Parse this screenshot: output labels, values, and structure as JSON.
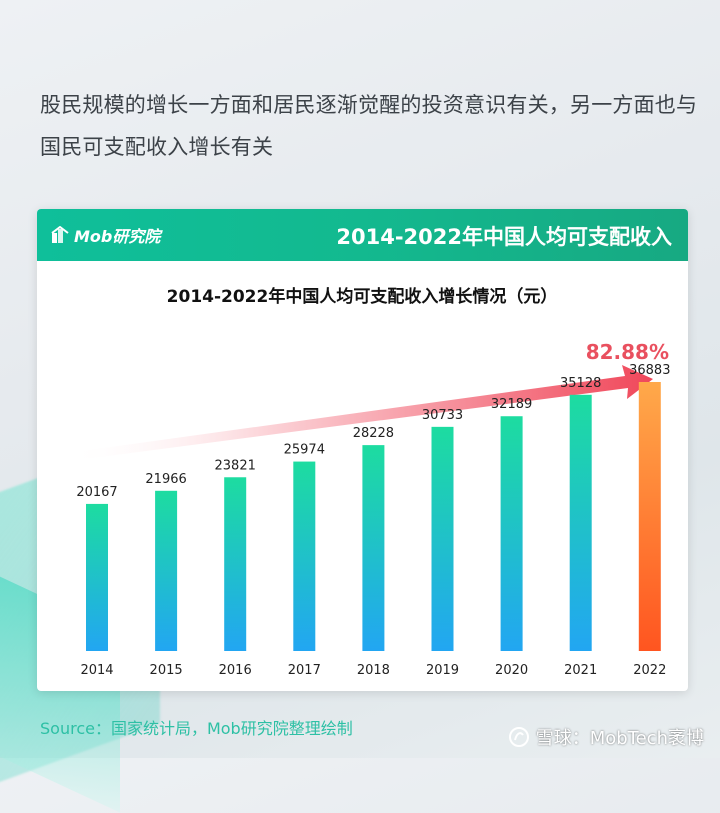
{
  "headline": "股民规模的增长一方面和居民逐渐觉醒的投资意识有关，另一方面也与国民可支配收入增长有关",
  "header": {
    "logo_text": "Mob研究院",
    "title": "2014-2022年中国人均可支配收入"
  },
  "chart_data": {
    "type": "bar",
    "title": "2014-2022年中国人均可支配收入增长情况（元）",
    "categories": [
      "2014",
      "2015",
      "2016",
      "2017",
      "2018",
      "2019",
      "2020",
      "2021",
      "2022"
    ],
    "values": [
      20167,
      21966,
      23821,
      25974,
      28228,
      30733,
      32189,
      35128,
      36883
    ],
    "value_labels": [
      "20167",
      "21966",
      "23821",
      "25974",
      "28228",
      "30733",
      "32189",
      "35128",
      "36883"
    ],
    "growth_annotation": "82.88%",
    "highlight_category": "2022",
    "colors": {
      "bar_top": "#1ddca0",
      "bar_bottom": "#22a6f2",
      "highlight_top": "#ffa94a",
      "highlight_bottom": "#ff5520",
      "arrow": "#f0475a",
      "annotation": "#e9505f"
    },
    "xlabel": "",
    "ylabel": "",
    "grid": false
  },
  "source": "Source：国家统计局，Mob研究院整理绘制",
  "watermark": "雪球：MobTech袤博"
}
